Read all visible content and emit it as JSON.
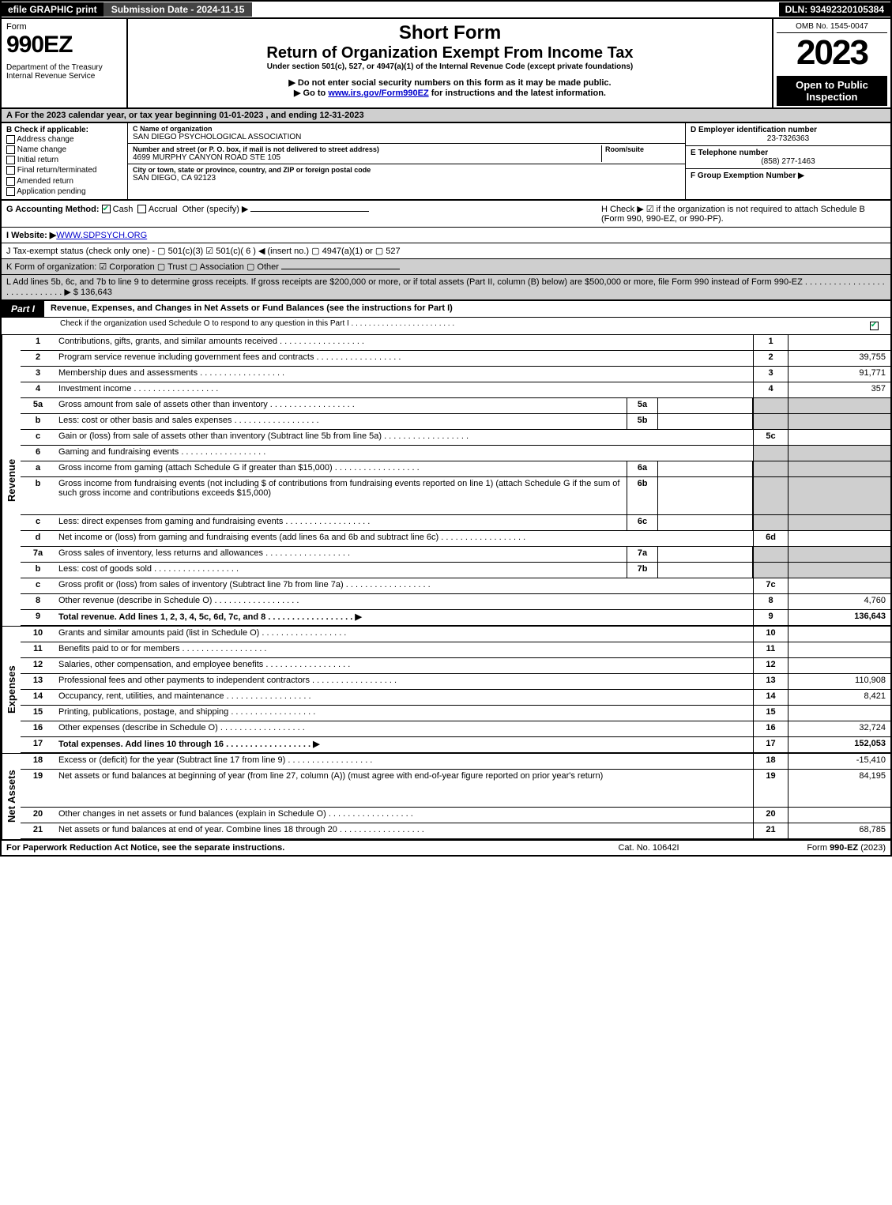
{
  "topbar": {
    "efile": "efile GRAPHIC print",
    "subdate_label": "Submission Date - 2024-11-15",
    "dln": "DLN: 93492320105384"
  },
  "header": {
    "form_word": "Form",
    "form_number": "990EZ",
    "dept": "Department of the Treasury\nInternal Revenue Service",
    "short_form": "Short Form",
    "title": "Return of Organization Exempt From Income Tax",
    "undersec": "Under section 501(c), 527, or 4947(a)(1) of the Internal Revenue Code (except private foundations)",
    "bullet1": "▶ Do not enter social security numbers on this form as it may be made public.",
    "bullet2_pre": "▶ Go to ",
    "bullet2_link": "www.irs.gov/Form990EZ",
    "bullet2_post": " for instructions and the latest information.",
    "omb": "OMB No. 1545-0047",
    "year": "2023",
    "open": "Open to Public Inspection"
  },
  "section_a": "A  For the 2023 calendar year, or tax year beginning 01-01-2023 , and ending 12-31-2023",
  "section_b": {
    "hdr": "B  Check if applicable:",
    "items": [
      "Address change",
      "Name change",
      "Initial return",
      "Final return/terminated",
      "Amended return",
      "Application pending"
    ]
  },
  "section_c": {
    "name_hdr": "C Name of organization",
    "name": "SAN DIEGO PSYCHOLOGICAL ASSOCIATION",
    "street_hdr": "Number and street (or P. O. box, if mail is not delivered to street address)",
    "room_hdr": "Room/suite",
    "street": "4699 MURPHY CANYON ROAD STE 105",
    "city_hdr": "City or town, state or province, country, and ZIP or foreign postal code",
    "city": "SAN DIEGO, CA  92123"
  },
  "section_d": {
    "ein_hdr": "D Employer identification number",
    "ein": "23-7326363",
    "tel_hdr": "E Telephone number",
    "tel": "(858) 277-1463",
    "grp_hdr": "F Group Exemption Number   ▶"
  },
  "row_g": {
    "label": "G Accounting Method:",
    "cash": "Cash",
    "accrual": "Accrual",
    "other": "Other (specify) ▶",
    "h_text": "H  Check ▶ ☑ if the organization is not required to attach Schedule B (Form 990, 990-EZ, or 990-PF)."
  },
  "row_i": {
    "label": "I Website: ▶",
    "value": "WWW.SDPSYCH.ORG"
  },
  "row_j": "J Tax-exempt status (check only one) - ▢ 501(c)(3)  ☑ 501(c)( 6 ) ◀ (insert no.)  ▢ 4947(a)(1) or  ▢ 527",
  "row_k": "K Form of organization:  ☑ Corporation  ▢ Trust  ▢ Association  ▢ Other",
  "row_l": {
    "text": "L Add lines 5b, 6c, and 7b to line 9 to determine gross receipts. If gross receipts are $200,000 or more, or if total assets (Part II, column (B) below) are $500,000 or more, file Form 990 instead of Form 990-EZ . . . . . . . . . . . . . . . . . . . . . . . . . . . . . ▶ $",
    "amount": "136,643"
  },
  "part1": {
    "tab": "Part I",
    "title": "Revenue, Expenses, and Changes in Net Assets or Fund Balances (see the instructions for Part I)",
    "recheck": "Check if the organization used Schedule O to respond to any question in this Part I . . . . . . . . . . . . . . . . . . . . . . . ."
  },
  "vcats": {
    "revenue": "Revenue",
    "expenses": "Expenses",
    "netassets": "Net Assets"
  },
  "lines": [
    {
      "no": "1",
      "desc": "Contributions, gifts, grants, and similar amounts received",
      "rn": "1",
      "rv": ""
    },
    {
      "no": "2",
      "desc": "Program service revenue including government fees and contracts",
      "rn": "2",
      "rv": "39,755"
    },
    {
      "no": "3",
      "desc": "Membership dues and assessments",
      "rn": "3",
      "rv": "91,771"
    },
    {
      "no": "4",
      "desc": "Investment income",
      "rn": "4",
      "rv": "357"
    },
    {
      "no": "5a",
      "desc": "Gross amount from sale of assets other than inventory",
      "mb": "5a",
      "mv": "",
      "shaded": true
    },
    {
      "no": "b",
      "desc": "Less: cost or other basis and sales expenses",
      "mb": "5b",
      "mv": "",
      "shaded": true
    },
    {
      "no": "c",
      "desc": "Gain or (loss) from sale of assets other than inventory (Subtract line 5b from line 5a)",
      "rn": "5c",
      "rv": ""
    },
    {
      "no": "6",
      "desc": "Gaming and fundraising events",
      "shaded_row": true
    },
    {
      "no": "a",
      "desc": "Gross income from gaming (attach Schedule G if greater than $15,000)",
      "mb": "6a",
      "mv": "",
      "shaded": true
    },
    {
      "no": "b",
      "desc": "Gross income from fundraising events (not including $              of contributions from fundraising events reported on line 1) (attach Schedule G if the sum of such gross income and contributions exceeds $15,000)",
      "mb": "6b",
      "mv": "",
      "shaded": true,
      "tall": true
    },
    {
      "no": "c",
      "desc": "Less: direct expenses from gaming and fundraising events",
      "mb": "6c",
      "mv": "",
      "shaded": true
    },
    {
      "no": "d",
      "desc": "Net income or (loss) from gaming and fundraising events (add lines 6a and 6b and subtract line 6c)",
      "rn": "6d",
      "rv": ""
    },
    {
      "no": "7a",
      "desc": "Gross sales of inventory, less returns and allowances",
      "mb": "7a",
      "mv": "",
      "shaded": true
    },
    {
      "no": "b",
      "desc": "Less: cost of goods sold",
      "mb": "7b",
      "mv": "",
      "shaded": true
    },
    {
      "no": "c",
      "desc": "Gross profit or (loss) from sales of inventory (Subtract line 7b from line 7a)",
      "rn": "7c",
      "rv": ""
    },
    {
      "no": "8",
      "desc": "Other revenue (describe in Schedule O)",
      "rn": "8",
      "rv": "4,760"
    },
    {
      "no": "9",
      "desc": "Total revenue. Add lines 1, 2, 3, 4, 5c, 6d, 7c, and 8",
      "rn": "9",
      "rv": "136,643",
      "bold": true,
      "arrow": true
    }
  ],
  "expenses": [
    {
      "no": "10",
      "desc": "Grants and similar amounts paid (list in Schedule O)",
      "rn": "10",
      "rv": ""
    },
    {
      "no": "11",
      "desc": "Benefits paid to or for members",
      "rn": "11",
      "rv": ""
    },
    {
      "no": "12",
      "desc": "Salaries, other compensation, and employee benefits",
      "rn": "12",
      "rv": ""
    },
    {
      "no": "13",
      "desc": "Professional fees and other payments to independent contractors",
      "rn": "13",
      "rv": "110,908"
    },
    {
      "no": "14",
      "desc": "Occupancy, rent, utilities, and maintenance",
      "rn": "14",
      "rv": "8,421"
    },
    {
      "no": "15",
      "desc": "Printing, publications, postage, and shipping",
      "rn": "15",
      "rv": ""
    },
    {
      "no": "16",
      "desc": "Other expenses (describe in Schedule O)",
      "rn": "16",
      "rv": "32,724"
    },
    {
      "no": "17",
      "desc": "Total expenses. Add lines 10 through 16",
      "rn": "17",
      "rv": "152,053",
      "bold": true,
      "arrow": true
    }
  ],
  "netassets": [
    {
      "no": "18",
      "desc": "Excess or (deficit) for the year (Subtract line 17 from line 9)",
      "rn": "18",
      "rv": "-15,410"
    },
    {
      "no": "19",
      "desc": "Net assets or fund balances at beginning of year (from line 27, column (A)) (must agree with end-of-year figure reported on prior year's return)",
      "rn": "19",
      "rv": "84,195",
      "tall": true
    },
    {
      "no": "20",
      "desc": "Other changes in net assets or fund balances (explain in Schedule O)",
      "rn": "20",
      "rv": ""
    },
    {
      "no": "21",
      "desc": "Net assets or fund balances at end of year. Combine lines 18 through 20",
      "rn": "21",
      "rv": "68,785"
    }
  ],
  "footer": {
    "left": "For Paperwork Reduction Act Notice, see the separate instructions.",
    "mid": "Cat. No. 10642I",
    "right": "Form 990-EZ (2023)"
  }
}
